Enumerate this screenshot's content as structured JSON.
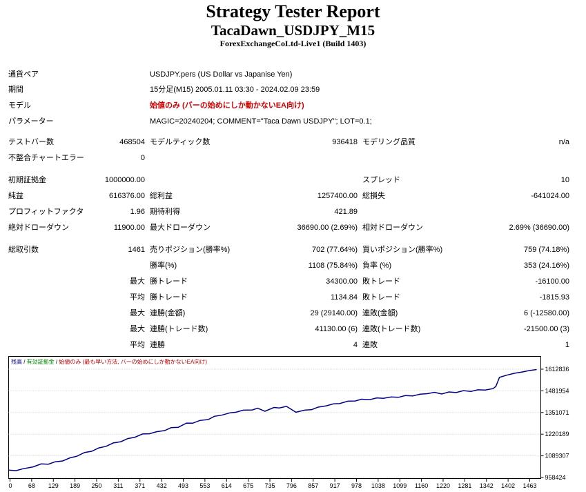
{
  "header": {
    "title": "Strategy Tester Report",
    "subtitle": "TacaDawn_USDJPY_M15",
    "company": "ForexExchangeCoLtd-Live1 (Build 1403)"
  },
  "info": {
    "symbol_label": "通貨ペア",
    "symbol_value": "USDJPY.pers (US Dollar vs Japanise Yen)",
    "period_label": "期間",
    "period_value": "15分足(M15) 2005.01.11 03:30 - 2024.02.09 23:59",
    "model_label": "モデル",
    "model_value": "始値のみ (バーの始めにしか動かないEA向け)",
    "params_label": "パラメーター",
    "params_value": "MAGIC=20240204; COMMENT=\"Taca Dawn USDJPY\"; LOT=0.1;"
  },
  "stats": {
    "bars_label": "テストバー数",
    "bars_value": "468504",
    "ticks_label": "モデルティック数",
    "ticks_value": "936418",
    "quality_label": "モデリング品質",
    "quality_value": "n/a",
    "mismatch_label": "不整合チャートエラー",
    "mismatch_value": "0",
    "deposit_label": "初期証拠金",
    "deposit_value": "1000000.00",
    "spread_label": "スプレッド",
    "spread_value": "10",
    "net_label": "純益",
    "net_value": "616376.00",
    "gross_profit_label": "総利益",
    "gross_profit_value": "1257400.00",
    "gross_loss_label": "総損失",
    "gross_loss_value": "-641024.00",
    "pf_label": "プロフィットファクタ",
    "pf_value": "1.96",
    "expected_label": "期待利得",
    "expected_value": "421.89",
    "abs_dd_label": "絶対ドローダウン",
    "abs_dd_value": "11900.00",
    "max_dd_label": "最大ドローダウン",
    "max_dd_value": "36690.00 (2.69%)",
    "rel_dd_label": "相対ドローダウン",
    "rel_dd_value": "2.69% (36690.00)",
    "total_trades_label": "総取引数",
    "total_trades_value": "1461",
    "short_label": "売りポジション(勝率%)",
    "short_value": "702 (77.64%)",
    "long_label": "買いポジション(勝率%)",
    "long_value": "759 (74.18%)",
    "win_label": "勝率(%)",
    "win_value": "1108 (75.84%)",
    "loss_label": "負率 (%)",
    "loss_value": "353 (24.16%)",
    "max1": "最大",
    "largest_win_label": "勝トレード",
    "largest_win_value": "34300.00",
    "largest_loss_label": "敗トレード",
    "largest_loss_value": "-16100.00",
    "avg1": "平均",
    "avg_win_label": "勝トレード",
    "avg_win_value": "1134.84",
    "avg_loss_label": "敗トレード",
    "avg_loss_value": "-1815.93",
    "max2": "最大",
    "max_cons_win_amt_label": "連勝(金額)",
    "max_cons_win_amt_value": "29 (29140.00)",
    "max_cons_loss_amt_label": "連敗(金額)",
    "max_cons_loss_amt_value": "6 (-12580.00)",
    "max3": "最大",
    "max_cons_win_cnt_label": "連勝(トレード数)",
    "max_cons_win_cnt_value": "41130.00 (6)",
    "max_cons_loss_cnt_label": "連敗(トレード数)",
    "max_cons_loss_cnt_value": "-21500.00 (3)",
    "avg2": "平均",
    "avg_cons_win_label": "連勝",
    "avg_cons_win_value": "4",
    "avg_cons_loss_label": "連敗",
    "avg_cons_loss_value": "1"
  },
  "chart_data": {
    "type": "line",
    "legend": {
      "balance": "残高",
      "equity": "有効証拠金",
      "model": "始値のみ (最も早い方法, バーの始めにしか動かないEA向け)",
      "sep": " / "
    },
    "colors": {
      "line": "#000080",
      "balance_text": "#000080",
      "equity_text": "#008000",
      "model_text": "#c00000",
      "grid": "#c8c8c8"
    },
    "xticks": [
      "0",
      "68",
      "129",
      "189",
      "250",
      "311",
      "371",
      "432",
      "493",
      "553",
      "614",
      "675",
      "735",
      "796",
      "857",
      "917",
      "978",
      "1038",
      "1099",
      "1160",
      "1220",
      "1281",
      "1342",
      "1402",
      "1463"
    ],
    "yticks": [
      "1612836",
      "1481954",
      "1351071",
      "1220189",
      "1089307",
      "958424"
    ],
    "ylim": [
      958424,
      1612836
    ],
    "xlim": [
      0,
      1463
    ],
    "series": [
      {
        "x": [
          0,
          20,
          40,
          68,
          90,
          110,
          129,
          150,
          170,
          189,
          210,
          230,
          250,
          270,
          290,
          311,
          330,
          350,
          371,
          390,
          410,
          432,
          450,
          470,
          493,
          510,
          530,
          553,
          570,
          590,
          614,
          630,
          650,
          675,
          690,
          710,
          735,
          750,
          770,
          796,
          820,
          840,
          857,
          880,
          900,
          917,
          940,
          960,
          978,
          1000,
          1020,
          1038,
          1060,
          1080,
          1099,
          1120,
          1140,
          1160,
          1180,
          1200,
          1220,
          1240,
          1260,
          1281,
          1300,
          1320,
          1342,
          1350,
          1360,
          1380,
          1402,
          1420,
          1440,
          1463
        ],
        "y": [
          1000000,
          1003000,
          1008000,
          1026000,
          1037000,
          1042000,
          1050000,
          1062000,
          1074000,
          1090000,
          1106000,
          1120000,
          1134000,
          1150000,
          1164000,
          1178000,
          1190000,
          1205000,
          1218000,
          1226000,
          1232000,
          1245000,
          1256000,
          1265000,
          1284000,
          1290000,
          1300000,
          1312000,
          1325000,
          1338000,
          1346000,
          1356000,
          1362000,
          1370000,
          1374000,
          1362000,
          1378000,
          1382000,
          1385000,
          1356000,
          1362000,
          1372000,
          1380000,
          1395000,
          1400000,
          1408000,
          1416000,
          1424000,
          1428000,
          1432000,
          1436000,
          1440000,
          1442000,
          1446000,
          1450000,
          1455000,
          1458000,
          1468000,
          1470000,
          1466000,
          1472000,
          1475000,
          1480000,
          1482000,
          1485000,
          1490000,
          1492000,
          1512000,
          1560000,
          1580000,
          1585000,
          1598000,
          1600000,
          1614000
        ]
      }
    ]
  }
}
